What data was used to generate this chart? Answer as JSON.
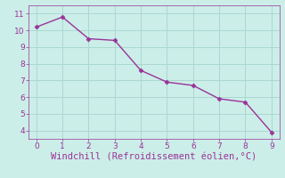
{
  "x": [
    0,
    1,
    2,
    3,
    4,
    5,
    6,
    7,
    8,
    9
  ],
  "y": [
    10.2,
    10.8,
    9.5,
    9.4,
    7.6,
    6.9,
    6.7,
    5.9,
    5.7,
    3.9
  ],
  "line_color": "#993399",
  "marker": "D",
  "marker_size": 2.5,
  "line_width": 1.0,
  "xlabel": "Windchill (Refroidissement éolien,°C)",
  "xlabel_fontsize": 7.5,
  "xlabel_color": "#993399",
  "xticks": [
    0,
    1,
    2,
    3,
    4,
    5,
    6,
    7,
    8,
    9
  ],
  "yticks": [
    4,
    5,
    6,
    7,
    8,
    9,
    10,
    11
  ],
  "ylim": [
    3.5,
    11.5
  ],
  "xlim": [
    -0.3,
    9.3
  ],
  "background_color": "#cceee8",
  "grid_color": "#aad8d2",
  "tick_fontsize": 6.5,
  "tick_color": "#993399",
  "spine_color": "#993399"
}
